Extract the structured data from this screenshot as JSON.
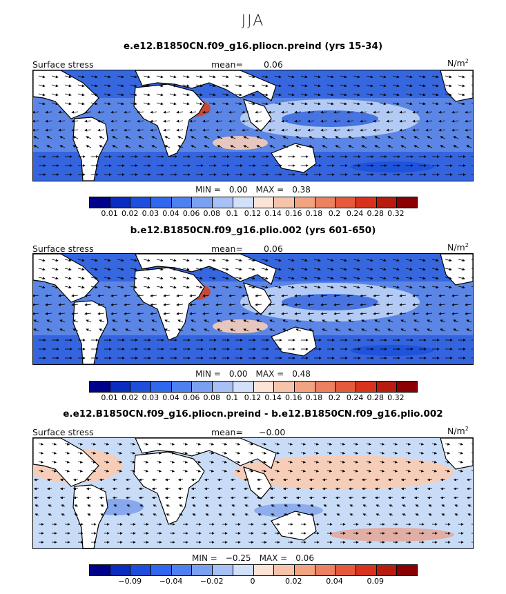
{
  "season": "JJA",
  "colors": {
    "ocean_low": "#1a4fd8",
    "ocean_mid": "#5b86e6",
    "ocean_light": "#c9dcf7",
    "pos_light": "#f6cdb8",
    "pos_mid": "#f0906e",
    "pos_high": "#d9401c",
    "land": "#ffffff",
    "arrow": "#000000"
  },
  "panels": [
    {
      "title": "e.e12.B1850CN.f09_g16.pliocn.preind (yrs 15-34)",
      "variable": "Surface stress",
      "mean_label": "mean=",
      "mean_value": "0.06",
      "units": "N/m",
      "units_exp": "2",
      "min_label": "MIN =",
      "min_value": "0.00",
      "max_label": "MAX =",
      "max_value": "0.38",
      "colorbar": [
        "#00008b",
        "#0b2cc0",
        "#1d4fdc",
        "#2f67ee",
        "#4e80f0",
        "#7aa0f2",
        "#a7c0f6",
        "#d2e0f9",
        "#fbe3d6",
        "#f6c4ab",
        "#f1a382",
        "#ec8060",
        "#e55a3c",
        "#d8321c",
        "#b71c0e",
        "#8b0000"
      ],
      "ticks": [
        "0.01",
        "0.02",
        "0.03",
        "0.04",
        "0.06",
        "0.08",
        "0.1",
        "0.12",
        "0.14",
        "0.16",
        "0.18",
        "0.2",
        "0.24",
        "0.28",
        "0.32"
      ]
    },
    {
      "title": "b.e12.B1850CN.f09_g16.plio.002 (yrs 601-650)",
      "variable": "Surface stress",
      "mean_label": "mean=",
      "mean_value": "0.06",
      "units": "N/m",
      "units_exp": "2",
      "min_label": "MIN =",
      "min_value": "0.00",
      "max_label": "MAX =",
      "max_value": "0.48",
      "colorbar": [
        "#00008b",
        "#0b2cc0",
        "#1d4fdc",
        "#2f67ee",
        "#4e80f0",
        "#7aa0f2",
        "#a7c0f6",
        "#d2e0f9",
        "#fbe3d6",
        "#f6c4ab",
        "#f1a382",
        "#ec8060",
        "#e55a3c",
        "#d8321c",
        "#b71c0e",
        "#8b0000"
      ],
      "ticks": [
        "0.01",
        "0.02",
        "0.03",
        "0.04",
        "0.06",
        "0.08",
        "0.1",
        "0.12",
        "0.14",
        "0.16",
        "0.18",
        "0.2",
        "0.24",
        "0.28",
        "0.32"
      ]
    },
    {
      "title": "e.e12.B1850CN.f09_g16.pliocn.preind - b.e12.B1850CN.f09_g16.plio.002",
      "variable": "Surface stress",
      "mean_label": "mean=",
      "mean_value": "−0.00",
      "units": "N/m",
      "units_exp": "2",
      "min_label": "MIN =",
      "min_value": "−0.25",
      "max_label": "MAX =",
      "max_value": "0.06",
      "colorbar": [
        "#00008b",
        "#0b2cc0",
        "#1d4fdc",
        "#2f67ee",
        "#4e80f0",
        "#7aa0f2",
        "#a7c0f6",
        "#d2e0f9",
        "#fbe3d6",
        "#f6c4ab",
        "#f1a382",
        "#ec8060",
        "#e55a3c",
        "#d8321c",
        "#b71c0e",
        "#8b0000"
      ],
      "ticks": [
        "−0.09",
        "−0.04",
        "−0.02",
        "0",
        "0.02",
        "0.04",
        "0.09"
      ]
    }
  ]
}
